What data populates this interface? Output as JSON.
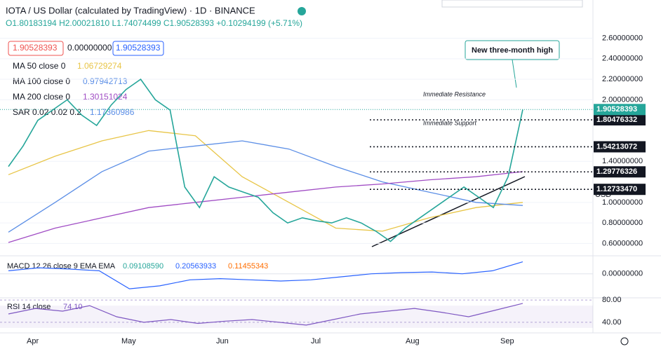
{
  "header": {
    "title": "IOTA / US Dollar (calculated by TradingView) · 1D · BINANCE",
    "ohlc": "O1.80183194 H2.00021810 L1.74074499 C1.90528393 +0.10294199 (+5.71%)",
    "boxes": [
      "1.90528393",
      "0.00000000",
      "1.90528393"
    ]
  },
  "annotations": {
    "callout": "New three-month high",
    "resistance": "Immediate Resistance",
    "support": "Immediate Support"
  },
  "x_labels": [
    "Apr",
    "May",
    "Jun",
    "Jul",
    "Aug",
    "Sep"
  ],
  "chart_data": {
    "type": "line",
    "axis_unit": "USD",
    "ylim": [
      0.48,
      2.87
    ],
    "yticks": [
      {
        "value": 0.6,
        "label": "0.60000000"
      },
      {
        "value": 0.8,
        "label": "0.80000000"
      },
      {
        "value": 1.0,
        "label": "1.00000000"
      },
      {
        "value": 1.4,
        "label": "1.40000000"
      },
      {
        "value": 2.0,
        "label": "2.00000000"
      },
      {
        "value": 2.2,
        "label": "2.20000000"
      },
      {
        "value": 2.4,
        "label": "2.40000000"
      },
      {
        "value": 2.6,
        "label": "2.60000000"
      }
    ],
    "price": {
      "color": "#26a69a",
      "current": 1.90528393,
      "values": [
        1.35,
        1.55,
        1.8,
        1.9,
        2.0,
        1.85,
        1.75,
        1.95,
        2.1,
        2.2,
        2.0,
        1.9,
        1.15,
        0.95,
        1.25,
        1.15,
        1.1,
        1.05,
        0.9,
        0.8,
        0.85,
        0.82,
        0.8,
        0.85,
        0.8,
        0.72,
        0.62,
        0.75,
        0.85,
        0.95,
        1.05,
        1.15,
        1.05,
        0.95,
        1.25,
        1.905
      ]
    },
    "levels": [
      {
        "value": 1.80476332,
        "label": "1.80476332"
      },
      {
        "value": 1.54213072,
        "label": "1.54213072"
      },
      {
        "value": 1.29776326,
        "label": "1.29776326"
      },
      {
        "value": 1.1273347,
        "label": "1.12733470"
      }
    ],
    "series": [
      {
        "name": "MA 50 close 0",
        "last": "1.06729274",
        "color": "#e8c547",
        "values": [
          1.27,
          1.45,
          1.6,
          1.7,
          1.65,
          1.25,
          1.0,
          0.75,
          0.72,
          0.85,
          0.95,
          1.0
        ]
      },
      {
        "name": "MA 100 close 0",
        "last": "0.97942713",
        "color": "#5b8ee6",
        "values": [
          0.71,
          1.0,
          1.3,
          1.5,
          1.55,
          1.6,
          1.52,
          1.35,
          1.2,
          1.1,
          1.0,
          0.97
        ]
      },
      {
        "name": "MA 200 close 0",
        "last": "1.30151024",
        "color": "#a04cc4",
        "values": [
          0.61,
          0.75,
          0.85,
          0.95,
          1.0,
          1.05,
          1.1,
          1.15,
          1.18,
          1.22,
          1.25,
          1.3
        ]
      }
    ],
    "sar": {
      "name": "SAR 0.02 0.02 0.2",
      "last": "1.17360986"
    }
  },
  "macd": {
    "name": "MACD 12 26 close 9 EMA EMA",
    "labels": [
      "0.09108590",
      "0.20563933",
      "0.11455343"
    ],
    "ylim": [
      -0.4,
      0.3
    ],
    "yticks": [
      {
        "value": 0,
        "label": "0.00000000"
      }
    ],
    "values": [
      0.05,
      0.1,
      0.08,
      0.05,
      -0.25,
      -0.2,
      -0.1,
      -0.08,
      -0.1,
      -0.12,
      -0.1,
      -0.05,
      0.0,
      0.02,
      0.03,
      0.0,
      0.05,
      0.2
    ]
  },
  "rsi": {
    "name": "RSI 14 close",
    "last": "74.10",
    "ylim": [
      21,
      84
    ],
    "yticks": [
      {
        "value": 80,
        "label": "80.00"
      },
      {
        "value": 40,
        "label": "40.00"
      }
    ],
    "values": [
      55,
      65,
      60,
      70,
      50,
      40,
      45,
      38,
      42,
      45,
      40,
      35,
      45,
      55,
      60,
      65,
      58,
      50,
      62,
      74.1
    ]
  }
}
